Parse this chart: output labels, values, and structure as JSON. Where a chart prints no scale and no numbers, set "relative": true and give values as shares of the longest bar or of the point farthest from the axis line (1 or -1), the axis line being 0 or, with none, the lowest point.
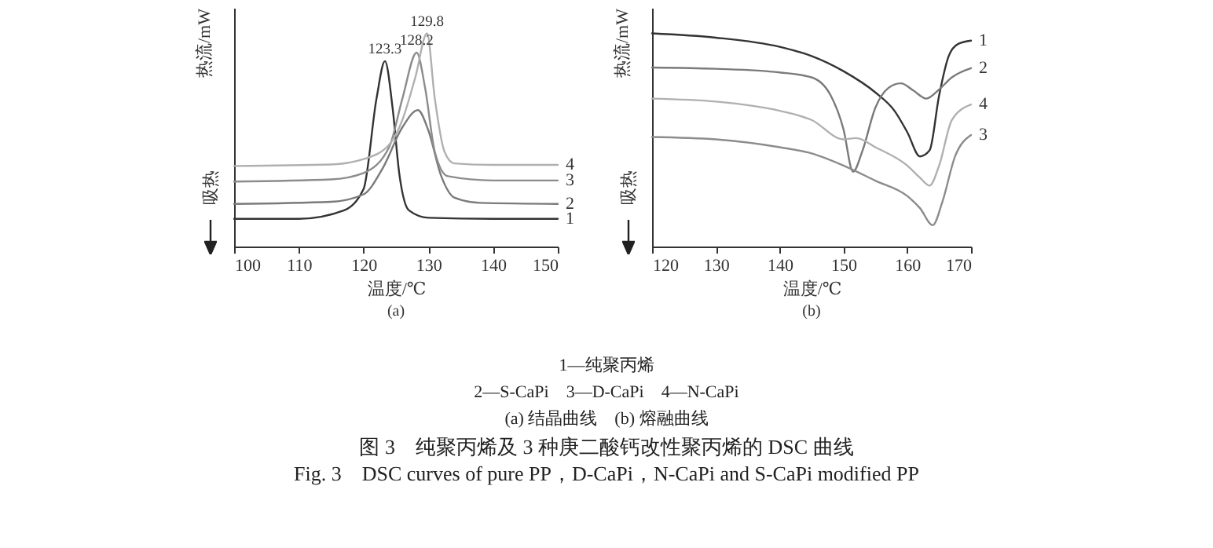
{
  "chart_data": [
    {
      "type": "line",
      "relative": true,
      "xlabel": "温度/℃",
      "ylabel": "热流/mW",
      "xlim": [
        100,
        150
      ],
      "xticks": [
        100,
        110,
        120,
        130,
        140,
        150
      ],
      "legend": false,
      "grid": false,
      "annotations": [
        "吸热",
        "(a)",
        {
          "text": "123.3",
          "x": 123.3,
          "y": 0.87
        },
        {
          "text": "128.2",
          "x": 128.2,
          "y": 0.91
        },
        {
          "text": "129.8",
          "x": 129.8,
          "y": 1.0
        }
      ],
      "series": [
        {
          "name": "1",
          "color": "#333333",
          "x": [
            100,
            110,
            117,
            120,
            122,
            123.3,
            124.5,
            125.5,
            127,
            130,
            140,
            150
          ],
          "values": [
            0.13,
            0.13,
            0.17,
            0.27,
            0.695,
            0.87,
            0.645,
            0.345,
            0.17,
            0.135,
            0.13,
            0.13
          ]
        },
        {
          "name": "2",
          "color": "#7a7a7a",
          "x": [
            100,
            115,
            120,
            123,
            126,
            128.4,
            130,
            132,
            134,
            138,
            150
          ],
          "values": [
            0.2,
            0.21,
            0.245,
            0.37,
            0.56,
            0.64,
            0.545,
            0.33,
            0.23,
            0.205,
            0.2
          ]
        },
        {
          "name": "3",
          "color": "#8c8c8c",
          "x": [
            100,
            115,
            120,
            124,
            126,
            128.2,
            129.5,
            131,
            133,
            140,
            150
          ],
          "values": [
            0.305,
            0.315,
            0.345,
            0.47,
            0.695,
            0.91,
            0.745,
            0.445,
            0.33,
            0.31,
            0.31
          ]
        },
        {
          "name": "4",
          "color": "#b0b0b0",
          "x": [
            100,
            115,
            120,
            124,
            126,
            128,
            129.8,
            131,
            132.5,
            134,
            140,
            150
          ],
          "values": [
            0.378,
            0.385,
            0.41,
            0.48,
            0.595,
            0.795,
            1.0,
            0.695,
            0.445,
            0.39,
            0.383,
            0.383
          ]
        }
      ]
    },
    {
      "type": "line",
      "relative": true,
      "xlabel": "温度/℃",
      "ylabel": "热流/mW",
      "xlim": [
        120,
        170
      ],
      "xticks": [
        120,
        130,
        140,
        150,
        160,
        170
      ],
      "legend": false,
      "grid": false,
      "annotations": [
        "吸热",
        "(b)"
      ],
      "series": [
        {
          "name": "1",
          "color": "#333333",
          "x": [
            120,
            130,
            140,
            145,
            150,
            155,
            158,
            160,
            162,
            163.5,
            165,
            166.5,
            168,
            170
          ],
          "values": [
            1.0,
            0.98,
            0.937,
            0.894,
            0.823,
            0.723,
            0.637,
            0.537,
            0.423,
            0.451,
            0.709,
            0.894,
            0.951,
            0.966
          ]
        },
        {
          "name": "2",
          "color": "#7a7a7a",
          "x": [
            120,
            130,
            140,
            145,
            148,
            150,
            151.5,
            153,
            155,
            157,
            159,
            161,
            163,
            165,
            167,
            170
          ],
          "values": [
            0.84,
            0.834,
            0.817,
            0.794,
            0.709,
            0.551,
            0.351,
            0.451,
            0.651,
            0.743,
            0.766,
            0.731,
            0.694,
            0.737,
            0.794,
            0.837
          ]
        },
        {
          "name": "4",
          "color": "#b0b0b0",
          "x": [
            120,
            130,
            140,
            145,
            150,
            152,
            155,
            160,
            162,
            163.5,
            165,
            167,
            170
          ],
          "values": [
            0.694,
            0.68,
            0.637,
            0.594,
            0.503,
            0.509,
            0.466,
            0.38,
            0.323,
            0.286,
            0.38,
            0.594,
            0.666
          ]
        },
        {
          "name": "3",
          "color": "#8c8c8c",
          "x": [
            120,
            130,
            140,
            145,
            150,
            155,
            160,
            162,
            164,
            165.5,
            167.5,
            170
          ],
          "values": [
            0.514,
            0.503,
            0.466,
            0.437,
            0.38,
            0.309,
            0.237,
            0.18,
            0.1,
            0.209,
            0.423,
            0.523
          ]
        }
      ]
    },
    {
      "type": "other",
      "title": "图 3　纯聚丙烯及 3 种庚二酸钙改性聚丙烯的 DSC 曲线",
      "subtitle": "Fig. 3　DSC curves of pure PP，D-CaPi，N-CaPi and S-CaPi modified PP",
      "annotations": [
        "1—纯聚丙烯",
        "2—S-CaPi　3—D-CaPi　4—N-CaPi",
        "(a) 结晶曲线　(b) 熔融曲线"
      ]
    }
  ]
}
